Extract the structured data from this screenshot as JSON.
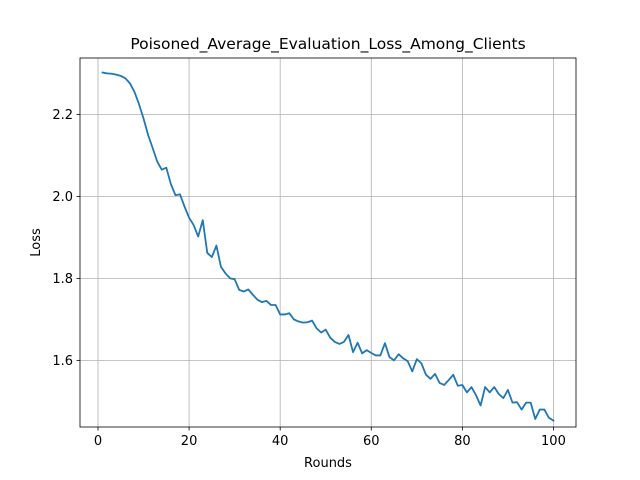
{
  "chart_data": {
    "type": "line",
    "title": "Poisoned_Average_Evaluation_Loss_Among_Clients",
    "xlabel": "Rounds",
    "ylabel": "Loss",
    "xlim": [
      -3.95,
      104.95
    ],
    "ylim": [
      1.4375,
      2.3375
    ],
    "xticks": [
      0,
      20,
      40,
      60,
      80,
      100
    ],
    "yticks": [
      1.6,
      1.8,
      2.0,
      2.2
    ],
    "xtick_labels": [
      "0",
      "20",
      "40",
      "60",
      "80",
      "100"
    ],
    "ytick_labels": [
      "1.6",
      "1.8",
      "2.0",
      "2.2"
    ],
    "grid": true,
    "colors": {
      "line": "#1f77b4",
      "grid": "#b0b0b0",
      "axes": "#000000"
    },
    "series": [
      {
        "x": [
          1,
          2,
          3,
          4,
          5,
          6,
          7,
          8,
          9,
          10,
          11,
          12,
          13,
          14,
          15,
          16,
          17,
          18,
          19,
          20,
          21,
          22,
          23,
          24,
          25,
          26,
          27,
          28,
          29,
          30,
          31,
          32,
          33,
          34,
          35,
          36,
          37,
          38,
          39,
          40,
          41,
          42,
          43,
          44,
          45,
          46,
          47,
          48,
          49,
          50,
          51,
          52,
          53,
          54,
          55,
          56,
          57,
          58,
          59,
          60,
          61,
          62,
          63,
          64,
          65,
          66,
          67,
          68,
          69,
          70,
          71,
          72,
          73,
          74,
          75,
          76,
          77,
          78,
          79,
          80,
          81,
          82,
          83,
          84,
          85,
          86,
          87,
          88,
          89,
          90,
          91,
          92,
          93,
          94,
          95,
          96,
          97,
          98,
          99,
          100
        ],
        "y": [
          2.302,
          2.3,
          2.299,
          2.297,
          2.294,
          2.288,
          2.276,
          2.255,
          2.225,
          2.19,
          2.15,
          2.118,
          2.085,
          2.065,
          2.07,
          2.03,
          2.003,
          2.005,
          1.975,
          1.948,
          1.93,
          1.902,
          1.942,
          1.862,
          1.852,
          1.88,
          1.828,
          1.812,
          1.8,
          1.798,
          1.772,
          1.768,
          1.773,
          1.76,
          1.748,
          1.742,
          1.745,
          1.735,
          1.735,
          1.712,
          1.712,
          1.715,
          1.7,
          1.695,
          1.692,
          1.693,
          1.697,
          1.678,
          1.668,
          1.675,
          1.655,
          1.645,
          1.64,
          1.645,
          1.662,
          1.62,
          1.643,
          1.617,
          1.625,
          1.618,
          1.612,
          1.612,
          1.642,
          1.608,
          1.6,
          1.615,
          1.605,
          1.598,
          1.573,
          1.603,
          1.593,
          1.565,
          1.555,
          1.567,
          1.545,
          1.54,
          1.552,
          1.565,
          1.538,
          1.54,
          1.522,
          1.535,
          1.515,
          1.49,
          1.535,
          1.522,
          1.535,
          1.518,
          1.508,
          1.528,
          1.497,
          1.498,
          1.48,
          1.497,
          1.497,
          1.457,
          1.48,
          1.48,
          1.46,
          1.453
        ]
      }
    ]
  }
}
